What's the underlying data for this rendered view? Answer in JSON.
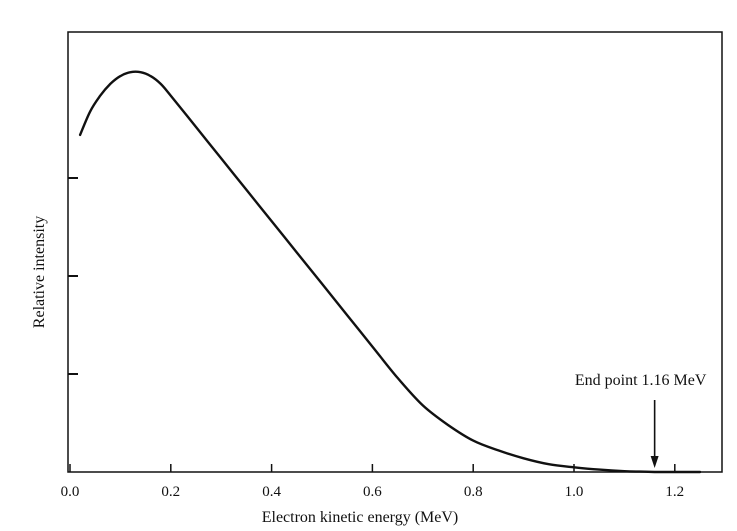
{
  "chart_data": {
    "type": "line",
    "title": "",
    "xlabel": "Electron kinetic energy (MeV)",
    "ylabel": "Relative intensity",
    "xlim": [
      0.0,
      1.3
    ],
    "ylim": [
      0,
      1.0
    ],
    "x_ticks": [
      "0.0",
      "0.2",
      "0.4",
      "0.6",
      "0.8",
      "1.0",
      "1.2"
    ],
    "x_tick_values": [
      0.0,
      0.2,
      0.4,
      0.6,
      0.8,
      1.0,
      1.2
    ],
    "y_tick_values": [
      0.25,
      0.5,
      0.75
    ],
    "grid": false,
    "legend": "none",
    "series": [
      {
        "x": [
          0.02,
          0.04,
          0.06,
          0.08,
          0.1,
          0.12,
          0.14,
          0.16,
          0.18,
          0.2,
          0.25,
          0.3,
          0.35,
          0.4,
          0.45,
          0.5,
          0.55,
          0.6,
          0.65,
          0.7,
          0.75,
          0.8,
          0.85,
          0.9,
          0.95,
          1.0,
          1.05,
          1.1,
          1.13,
          1.16
        ],
        "values": [
          0.86,
          0.92,
          0.96,
          0.99,
          1.01,
          1.02,
          1.02,
          1.01,
          0.99,
          0.96,
          0.88,
          0.8,
          0.72,
          0.64,
          0.56,
          0.48,
          0.4,
          0.32,
          0.24,
          0.17,
          0.12,
          0.08,
          0.055,
          0.035,
          0.02,
          0.012,
          0.006,
          0.002,
          0.001,
          0.0
        ]
      }
    ],
    "annotation": {
      "text": "End point  1.16 MeV",
      "x": 1.16
    }
  }
}
